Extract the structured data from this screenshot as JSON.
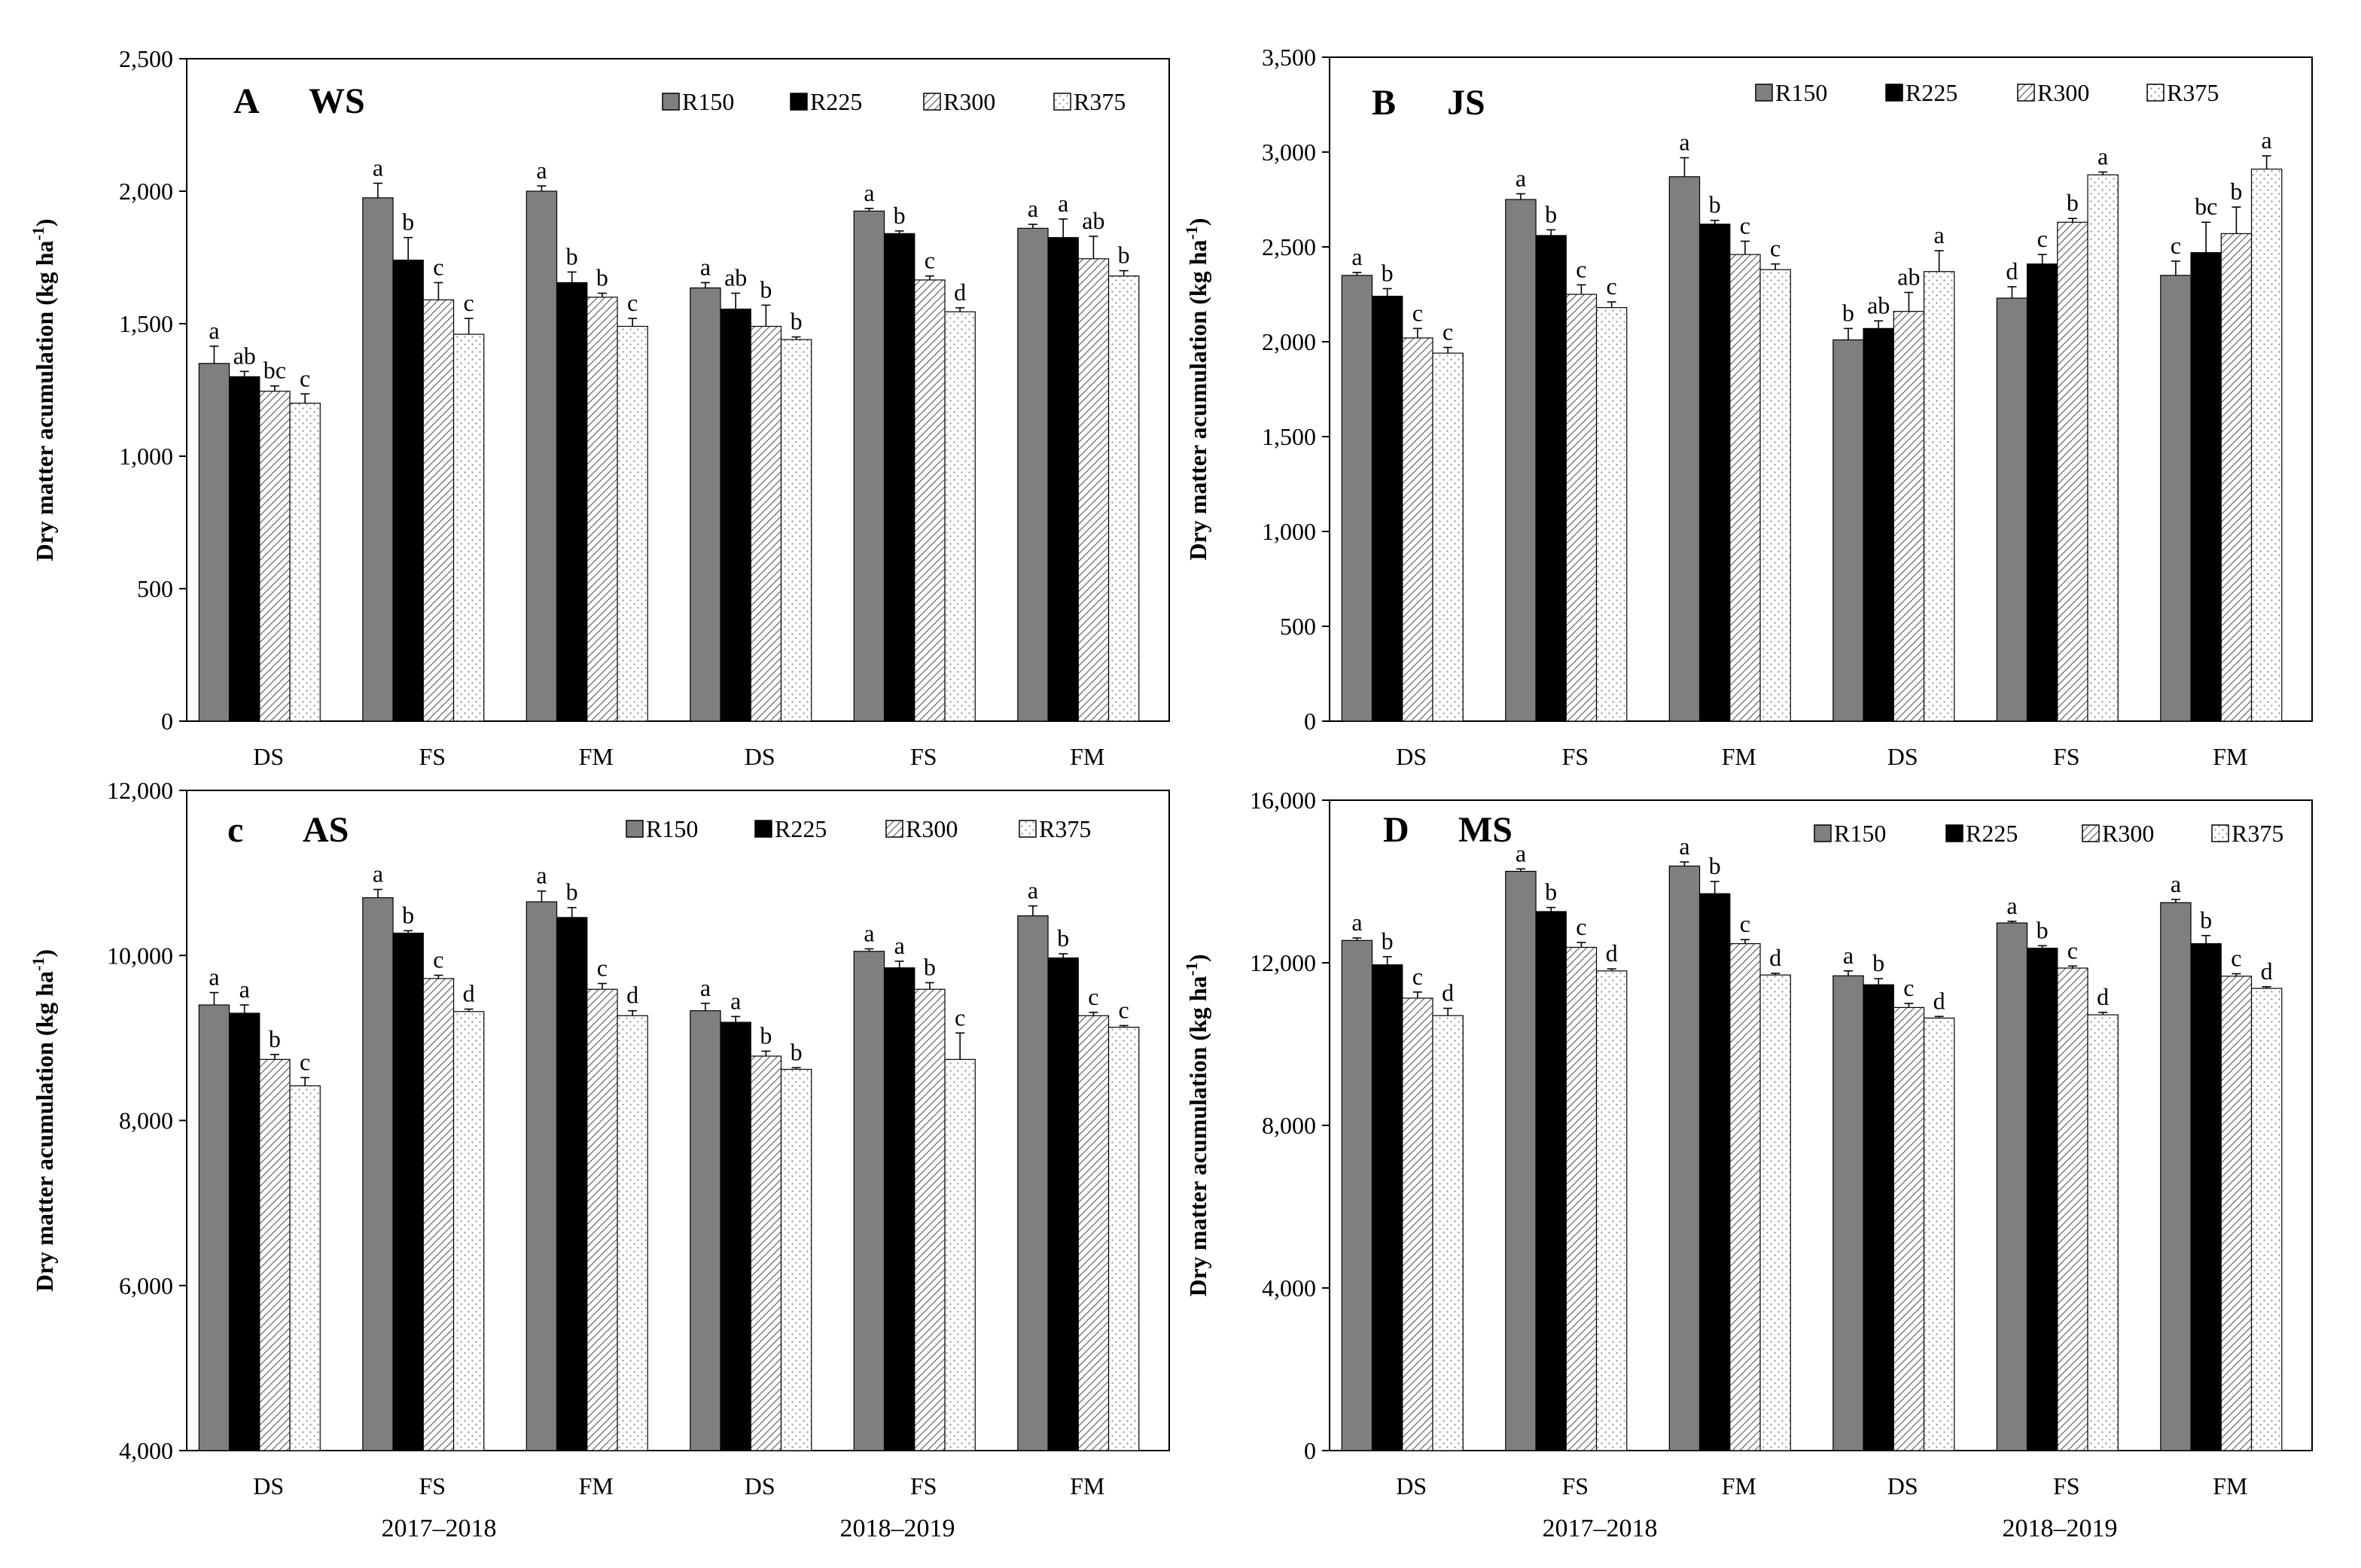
{
  "figure": {
    "years": [
      "2017–2018",
      "2018–2019"
    ]
  },
  "chart_data": [
    {
      "type": "bar",
      "panel_letter": "A",
      "panel_code": "WS",
      "ylabel": "Dry matter acumulation",
      "yunit": "(kg ha-1)",
      "ylim": [
        0,
        2500
      ],
      "yticks": [
        0,
        500,
        1000,
        1500,
        2000,
        2500
      ],
      "ytick_labels": [
        "0",
        "500",
        "1,000",
        "1,500",
        "2,000",
        "2,500"
      ],
      "categories": [
        "DS",
        "FS",
        "FM",
        "DS",
        "FS",
        "FM"
      ],
      "series": [
        {
          "name": "R150",
          "values": [
            1350,
            1975,
            2000,
            1635,
            1925,
            1860
          ],
          "errors": [
            65,
            55,
            20,
            20,
            10,
            15
          ],
          "letters": [
            "a",
            "a",
            "a",
            "a",
            "a",
            "a"
          ]
        },
        {
          "name": "R225",
          "values": [
            1300,
            1740,
            1655,
            1555,
            1840,
            1825
          ],
          "errors": [
            20,
            85,
            40,
            60,
            10,
            70
          ],
          "letters": [
            "ab",
            "b",
            "b",
            "ab",
            "b",
            "a"
          ]
        },
        {
          "name": "R300",
          "values": [
            1245,
            1590,
            1600,
            1490,
            1665,
            1745
          ],
          "errors": [
            20,
            65,
            15,
            80,
            15,
            85
          ],
          "letters": [
            "bc",
            "c",
            "b",
            "b",
            "c",
            "ab"
          ]
        },
        {
          "name": "R375",
          "values": [
            1200,
            1460,
            1490,
            1440,
            1545,
            1680
          ],
          "errors": [
            35,
            60,
            30,
            10,
            15,
            20
          ],
          "letters": [
            "c",
            "c",
            "c",
            "b",
            "d",
            "b"
          ]
        }
      ],
      "legend_position": "top-right",
      "grid": false
    },
    {
      "type": "bar",
      "panel_letter": "B",
      "panel_code": "JS",
      "ylabel": "Dry matter acumulation",
      "yunit": "(kg ha-1)",
      "ylim": [
        0,
        3500
      ],
      "yticks": [
        0,
        500,
        1000,
        1500,
        2000,
        2500,
        3000,
        3500
      ],
      "ytick_labels": [
        "0",
        "500",
        "1,000",
        "1,500",
        "2,000",
        "2,500",
        "3,000",
        "3,500"
      ],
      "categories": [
        "DS",
        "FS",
        "FM",
        "DS",
        "FS",
        "FM"
      ],
      "series": [
        {
          "name": "R150",
          "values": [
            2350,
            2750,
            2870,
            2010,
            2230,
            2350
          ],
          "errors": [
            15,
            30,
            100,
            60,
            60,
            75
          ],
          "letters": [
            "a",
            "a",
            "a",
            "b",
            "d",
            "c"
          ]
        },
        {
          "name": "R225",
          "values": [
            2240,
            2560,
            2620,
            2070,
            2410,
            2470
          ],
          "errors": [
            40,
            30,
            20,
            40,
            50,
            160
          ],
          "letters": [
            "b",
            "b",
            "b",
            "ab",
            "c",
            "bc"
          ]
        },
        {
          "name": "R300",
          "values": [
            2020,
            2250,
            2460,
            2160,
            2630,
            2570
          ],
          "errors": [
            50,
            50,
            70,
            100,
            20,
            140
          ],
          "letters": [
            "c",
            "c",
            "c",
            "ab",
            "b",
            "b"
          ]
        },
        {
          "name": "R375",
          "values": [
            1940,
            2180,
            2380,
            2370,
            2880,
            2910
          ],
          "errors": [
            30,
            30,
            30,
            110,
            15,
            70
          ],
          "letters": [
            "c",
            "c",
            "c",
            "a",
            "a",
            "a"
          ]
        }
      ],
      "legend_position": "top-right",
      "grid": false
    },
    {
      "type": "bar",
      "panel_letter": "c",
      "panel_code": "AS",
      "ylabel": "Dry matter acumulation",
      "yunit": "(kg ha-1)",
      "ylim": [
        4000,
        12000
      ],
      "yticks": [
        4000,
        6000,
        8000,
        10000,
        12000
      ],
      "ytick_labels": [
        "4,000",
        "6,000",
        "8,000",
        "10,000",
        "12,000"
      ],
      "categories": [
        "DS",
        "FS",
        "FM",
        "DS",
        "FS",
        "FM"
      ],
      "series": [
        {
          "name": "R150",
          "values": [
            9400,
            10700,
            10650,
            9330,
            10050,
            10480
          ],
          "errors": [
            150,
            100,
            130,
            90,
            30,
            120
          ],
          "letters": [
            "a",
            "a",
            "a",
            "a",
            "a",
            "a"
          ]
        },
        {
          "name": "R225",
          "values": [
            9300,
            10270,
            10460,
            9190,
            9850,
            9970
          ],
          "errors": [
            100,
            30,
            120,
            70,
            80,
            50
          ],
          "letters": [
            "a",
            "b",
            "b",
            "a",
            "a",
            "b"
          ]
        },
        {
          "name": "R300",
          "values": [
            8740,
            9720,
            9590,
            8780,
            9590,
            9270
          ],
          "errors": [
            60,
            40,
            70,
            60,
            80,
            40
          ],
          "letters": [
            "b",
            "c",
            "c",
            "b",
            "b",
            "c"
          ]
        },
        {
          "name": "R375",
          "values": [
            8420,
            9320,
            9270,
            8620,
            8740,
            9130
          ],
          "errors": [
            100,
            30,
            60,
            20,
            320,
            20
          ],
          "letters": [
            "c",
            "d",
            "d",
            "b",
            "c",
            "c"
          ]
        }
      ],
      "legend_position": "top-right",
      "grid": false
    },
    {
      "type": "bar",
      "panel_letter": "D",
      "panel_code": "MS",
      "ylabel": "Dry matter acumulation",
      "yunit": "(kg ha-1)",
      "ylim": [
        0,
        16000
      ],
      "yticks": [
        0,
        4000,
        8000,
        12000,
        16000
      ],
      "ytick_labels": [
        "0",
        "4,000",
        "8,000",
        "12,000",
        "16,000"
      ],
      "categories": [
        "DS",
        "FS",
        "FM",
        "DS",
        "FS",
        "FM"
      ],
      "series": [
        {
          "name": "R150",
          "values": [
            12550,
            14250,
            14380,
            11680,
            12980,
            13480
          ],
          "errors": [
            60,
            60,
            100,
            120,
            40,
            80
          ],
          "letters": [
            "a",
            "a",
            "a",
            "a",
            "a",
            "a"
          ]
        },
        {
          "name": "R225",
          "values": [
            11950,
            13260,
            13700,
            11460,
            12360,
            12470
          ],
          "errors": [
            200,
            100,
            300,
            150,
            60,
            200
          ],
          "letters": [
            "b",
            "b",
            "b",
            "b",
            "b",
            "b"
          ]
        },
        {
          "name": "R300",
          "values": [
            11130,
            12380,
            12470,
            10900,
            11870,
            11670
          ],
          "errors": [
            150,
            120,
            100,
            100,
            50,
            60
          ],
          "letters": [
            "c",
            "c",
            "c",
            "c",
            "c",
            "c"
          ]
        },
        {
          "name": "R375",
          "values": [
            10700,
            11800,
            11700,
            10640,
            10720,
            11370
          ],
          "errors": [
            180,
            50,
            40,
            40,
            60,
            40
          ],
          "letters": [
            "d",
            "d",
            "d",
            "d",
            "d",
            "d"
          ]
        }
      ],
      "legend_position": "top-right",
      "grid": false
    }
  ]
}
